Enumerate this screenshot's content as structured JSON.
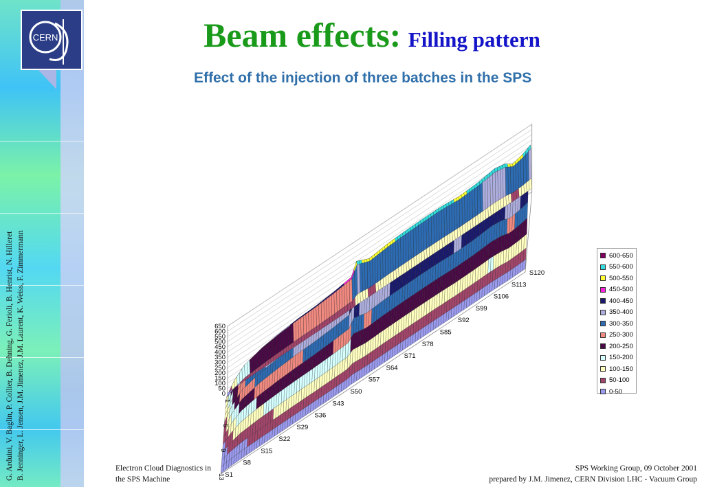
{
  "slide": {
    "title_main": "Beam effects:",
    "title_sub": "Filling pattern",
    "subtitle": "Effect of the injection of three batches in the SPS"
  },
  "logo": {
    "text": "CERN"
  },
  "side_credits": {
    "line1": "G. Arduini, V. Baglin, P. Collier, B. Dehning, G. Ferioli, B. Henrist, N. Hilleret",
    "line2": "B. Jenninger, L. Jensen, J.M. Jimenez, J.M. Laurent, K. Weiss, F. Zimmermann"
  },
  "footer": {
    "left_line1": "Electron Cloud Diagnostics in",
    "left_line2": "the SPS Machine",
    "right_line1": "SPS Working Group, 09 October 2001",
    "right_line2": "prepared by J.M. Jimenez, CERN Division LHC - Vacuum Group"
  },
  "colors": {
    "title_green": "#1a9a1a",
    "title_blue": "#1414c8",
    "subtitle_blue": "#2f6faa",
    "logo_navy": "#2a3d86"
  },
  "chart_data": {
    "type": "surface3d",
    "title": "",
    "z_axis": {
      "min": 0,
      "max": 650,
      "step": 50,
      "tick_labels": [
        "0",
        "50",
        "100",
        "150",
        "200",
        "250",
        "300",
        "350",
        "400",
        "450",
        "500",
        "550",
        "600",
        "650"
      ]
    },
    "x_axis_tick_labels": [
      "1",
      "5",
      "9",
      "13"
    ],
    "y_axis_tick_labels": [
      "S1",
      "S8",
      "S15",
      "S22",
      "S29",
      "S36",
      "S43",
      "S50",
      "S57",
      "S64",
      "S71",
      "S78",
      "S85",
      "S92",
      "S99",
      "S106",
      "S113",
      "S120"
    ],
    "legend_position": "right",
    "grid": true,
    "legend": [
      {
        "label": "600-650",
        "color": "#800060"
      },
      {
        "label": "550-600",
        "color": "#33dddd"
      },
      {
        "label": "500-550",
        "color": "#ffff33"
      },
      {
        "label": "450-500",
        "color": "#ff22dd"
      },
      {
        "label": "400-450",
        "color": "#1a1a6e"
      },
      {
        "label": "350-400",
        "color": "#aeaede"
      },
      {
        "label": "300-350",
        "color": "#2d6bb3"
      },
      {
        "label": "250-300",
        "color": "#f08a80"
      },
      {
        "label": "200-250",
        "color": "#4a0a45"
      },
      {
        "label": "150-200",
        "color": "#d6ffff"
      },
      {
        "label": "100-150",
        "color": "#ffffc0"
      },
      {
        "label": "50-100",
        "color": "#a3466b"
      },
      {
        "label": "0-50",
        "color": "#9a9aee"
      }
    ],
    "ridge_profile_s": [
      1,
      4,
      8,
      15,
      22,
      29,
      36,
      43,
      50,
      52,
      57,
      64,
      71,
      78,
      85,
      92,
      99,
      106,
      110,
      113,
      116,
      118,
      120
    ],
    "ridge_profile_value": [
      100,
      230,
      330,
      390,
      420,
      440,
      450,
      470,
      500,
      620,
      565,
      590,
      600,
      605,
      605,
      590,
      600,
      630,
      610,
      560,
      580,
      600,
      630
    ],
    "ridge_width_sample": [
      1,
      2,
      3,
      4,
      5,
      6,
      7,
      8,
      9,
      10,
      11,
      12,
      13,
      14
    ],
    "ridge_width_factor": [
      0.05,
      0.3,
      0.85,
      1.0,
      0.95,
      0.9,
      0.85,
      0.75,
      0.6,
      0.45,
      0.3,
      0.18,
      0.1,
      0.05
    ]
  }
}
